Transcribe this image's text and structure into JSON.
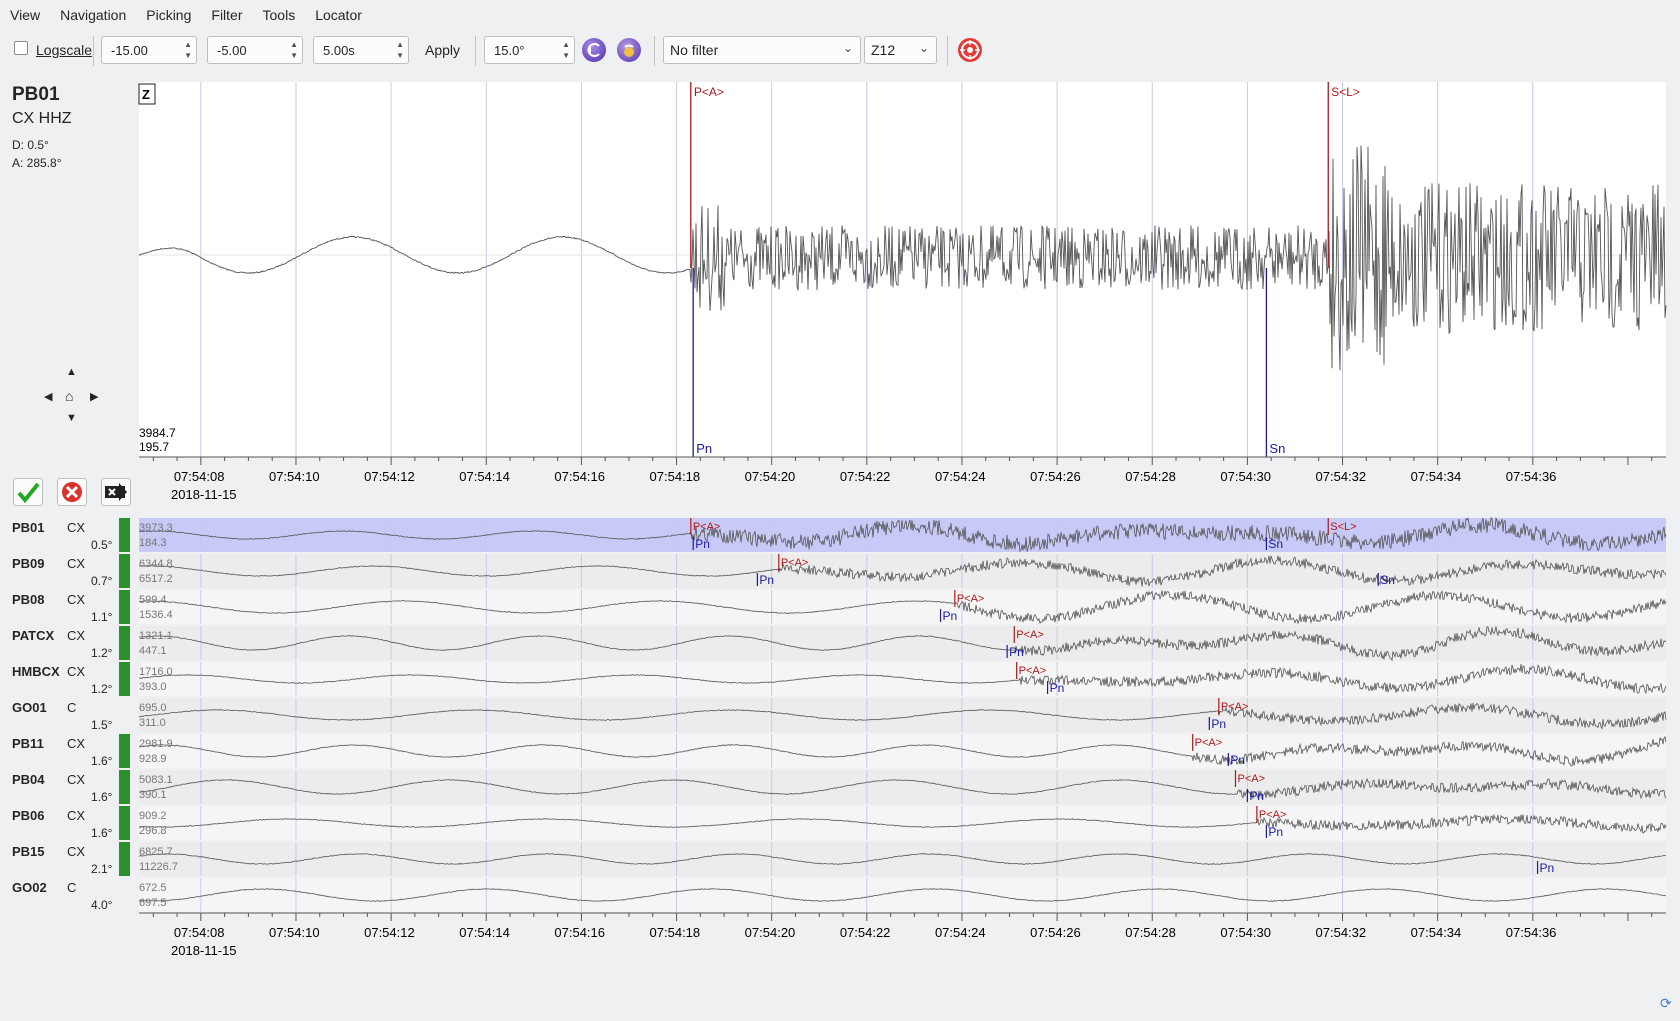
{
  "menu": [
    "View",
    "Navigation",
    "Picking",
    "Filter",
    "Tools",
    "Locator"
  ],
  "toolbar": {
    "logscale_label": "Logscale",
    "logscale_checked": false,
    "amp_min": "-15.00",
    "amp_max": "-5.00",
    "time_window": "5.00s",
    "apply_label": "Apply",
    "angle": "15.0°",
    "filter": "No filter",
    "component": "Z12"
  },
  "main_station": {
    "code": "PB01",
    "channel": "CX  HHZ",
    "distance": "D:  0.5°",
    "azimuth": "A:  285.8°",
    "component_badge": "Z",
    "amp_max": "3984.7",
    "amp_min": "195.7"
  },
  "time_axis": {
    "ticks": [
      "07:54:08",
      "07:54:10",
      "07:54:12",
      "07:54:14",
      "07:54:16",
      "07:54:18",
      "07:54:20",
      "07:54:22",
      "07:54:24",
      "07:54:26",
      "07:54:28",
      "07:54:30",
      "07:54:32",
      "07:54:34",
      "07:54:36"
    ],
    "date": "2018-11-15"
  },
  "main_picks": [
    {
      "label": "P<A>",
      "type": "manual",
      "time": 18.3
    },
    {
      "label": "S<L>",
      "type": "manual",
      "time": 31.7
    },
    {
      "label": "Pn",
      "type": "theoretical",
      "time": 18.35
    },
    {
      "label": "Sn",
      "type": "theoretical",
      "time": 30.4
    }
  ],
  "traces": [
    {
      "station": "PB01",
      "net": "CX",
      "dist": "0.5°",
      "a1": "3973.3",
      "a2": "184.3",
      "selected": true,
      "picks": [
        {
          "label": "P<A>",
          "t": 18.3,
          "k": "m"
        },
        {
          "label": "S<L>",
          "t": 31.7,
          "k": "m"
        },
        {
          "label": "Pn",
          "t": 18.35,
          "k": "t"
        },
        {
          "label": "Sn",
          "t": 30.4,
          "k": "t"
        }
      ],
      "onset": 18.3,
      "big": true
    },
    {
      "station": "PB09",
      "net": "CX",
      "dist": "0.7°",
      "a1": "6344.8",
      "a2": "6517.2",
      "selected": false,
      "picks": [
        {
          "label": "P<A>",
          "t": 20.15,
          "k": "m"
        },
        {
          "label": "Pn",
          "t": 19.7,
          "k": "t"
        },
        {
          "label": "Sn",
          "t": 32.75,
          "k": "t"
        }
      ],
      "onset": 20.15
    },
    {
      "station": "PB08",
      "net": "CX",
      "dist": "1.1°",
      "a1": "599.4",
      "a2": "1536.4",
      "selected": false,
      "picks": [
        {
          "label": "P<A>",
          "t": 23.85,
          "k": "m"
        },
        {
          "label": "Pn",
          "t": 23.55,
          "k": "t"
        }
      ],
      "onset": 23.85
    },
    {
      "station": "PATCX",
      "net": "CX",
      "dist": "1.2°",
      "a1": "1321.1",
      "a2": "447.1",
      "selected": false,
      "picks": [
        {
          "label": "P<A>",
          "t": 25.1,
          "k": "m"
        },
        {
          "label": "Pn",
          "t": 24.95,
          "k": "t"
        }
      ],
      "onset": 25.1
    },
    {
      "station": "HMBCX",
      "net": "CX",
      "dist": "1.2°",
      "a1": "1716.0",
      "a2": "393.0",
      "selected": false,
      "picks": [
        {
          "label": "P<A>",
          "t": 25.15,
          "k": "m"
        },
        {
          "label": "Pn",
          "t": 25.8,
          "k": "t"
        }
      ],
      "onset": 25.2
    },
    {
      "station": "GO01",
      "net": "C",
      "dist": "1.5°",
      "a1": "695.0",
      "a2": "311.0",
      "selected": false,
      "picks": [
        {
          "label": "P<A>",
          "t": 29.4,
          "k": "m"
        },
        {
          "label": "Pn",
          "t": 29.2,
          "k": "t"
        }
      ],
      "onset": 29.4
    },
    {
      "station": "PB11",
      "net": "CX",
      "dist": "1.6°",
      "a1": "2981.9",
      "a2": "928.9",
      "selected": false,
      "picks": [
        {
          "label": "P<A>",
          "t": 28.85,
          "k": "m"
        },
        {
          "label": "Pn",
          "t": 29.6,
          "k": "t"
        }
      ],
      "onset": 28.85
    },
    {
      "station": "PB04",
      "net": "CX",
      "dist": "1.6°",
      "a1": "5083.1",
      "a2": "390.1",
      "selected": false,
      "picks": [
        {
          "label": "P<A>",
          "t": 29.75,
          "k": "m"
        },
        {
          "label": "Pn",
          "t": 30.0,
          "k": "t"
        }
      ],
      "onset": 29.8
    },
    {
      "station": "PB06",
      "net": "CX",
      "dist": "1.6°",
      "a1": "909.2",
      "a2": "296.8",
      "selected": false,
      "picks": [
        {
          "label": "P<A>",
          "t": 30.2,
          "k": "m"
        },
        {
          "label": "Pn",
          "t": 30.4,
          "k": "t"
        }
      ],
      "onset": 30.2
    },
    {
      "station": "PB15",
      "net": "CX",
      "dist": "2.1°",
      "a1": "6825.7",
      "a2": "11226.7",
      "selected": false,
      "picks": [
        {
          "label": "Pn",
          "t": 36.1,
          "k": "t"
        }
      ],
      "onset": 99
    },
    {
      "station": "GO02",
      "net": "C",
      "dist": "4.0°",
      "a1": "672.5",
      "a2": "697.5",
      "selected": false,
      "picks": [],
      "onset": 99
    }
  ],
  "colors": {
    "manual_pick": "#b01818",
    "theoretical_pick": "#1a1aa8",
    "gridline": "#c8c8ee",
    "selection": "#c7c9f6",
    "status_green": "#2c8e2c"
  }
}
